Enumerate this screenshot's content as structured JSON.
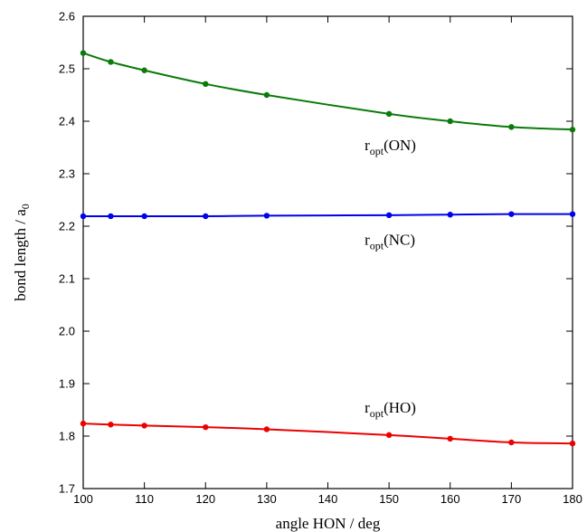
{
  "chart_data": {
    "type": "line",
    "xlabel": "angle HON / deg",
    "ylabel": {
      "main": "bond length / a",
      "subscript": "0"
    },
    "xlim": [
      100,
      180
    ],
    "ylim": [
      1.7,
      2.6
    ],
    "xticks": [
      "100",
      "110",
      "120",
      "130",
      "140",
      "150",
      "160",
      "170",
      "180"
    ],
    "yticks": [
      "1.7",
      "1.8",
      "1.9",
      "2.0",
      "2.1",
      "2.2",
      "2.3",
      "2.4",
      "2.5",
      "2.6"
    ],
    "grid": false,
    "series": [
      {
        "color": "#0a7a0a",
        "x": [
          100,
          104.5,
          110,
          120,
          130,
          150,
          160,
          170,
          180
        ],
        "y": [
          2.53,
          2.513,
          2.497,
          2.471,
          2.45,
          2.414,
          2.4,
          2.389,
          2.384
        ]
      },
      {
        "color": "#0000ee",
        "x": [
          100,
          104.5,
          110,
          120,
          130,
          150,
          160,
          170,
          180
        ],
        "y": [
          2.219,
          2.219,
          2.219,
          2.219,
          2.22,
          2.221,
          2.222,
          2.223,
          2.223
        ]
      },
      {
        "color": "#ee0000",
        "x": [
          100,
          104.5,
          110,
          120,
          130,
          150,
          160,
          170,
          180
        ],
        "y": [
          1.824,
          1.822,
          1.82,
          1.817,
          1.813,
          1.802,
          1.795,
          1.788,
          1.786
        ]
      }
    ],
    "annotations": [
      {
        "prefix": "r",
        "sub": "opt",
        "suffix": "(ON)",
        "x": 146,
        "y": 2.345
      },
      {
        "prefix": "r",
        "sub": "opt",
        "suffix": "(NC)",
        "x": 146,
        "y": 2.165
      },
      {
        "prefix": "r",
        "sub": "opt",
        "suffix": "(HO)",
        "x": 146,
        "y": 1.845
      }
    ]
  }
}
